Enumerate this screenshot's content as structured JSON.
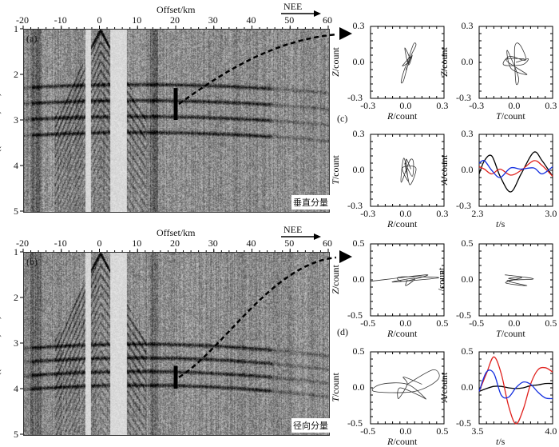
{
  "chart_data": [
    {
      "type": "heatmap",
      "panel": "(a)",
      "title": "Offset/km",
      "direction_label": "NEE",
      "component_label": "垂直分量",
      "ylabel": "((T-Offset)/6.0)/s",
      "xlim": [
        -20,
        60
      ],
      "ylim": [
        1,
        5
      ],
      "xticks": [
        -20,
        -10,
        0,
        10,
        20,
        30,
        40,
        50,
        60
      ],
      "yticks": [
        1,
        2,
        3,
        4,
        5
      ],
      "marker_offset_km": 20,
      "marker_time_s": [
        2.3,
        3.0
      ]
    },
    {
      "type": "heatmap",
      "panel": "(b)",
      "title": "Offset/km",
      "direction_label": "NEE",
      "component_label": "径向分量",
      "ylabel": "((T-Offset)/6.0)/s",
      "xlim": [
        -20,
        60
      ],
      "ylim": [
        1,
        5
      ],
      "xticks": [
        -20,
        -10,
        0,
        10,
        20,
        30,
        40,
        50,
        60
      ],
      "yticks": [
        1,
        2,
        3,
        4,
        5
      ],
      "marker_offset_km": 20,
      "marker_time_s": [
        3.5,
        4.0
      ]
    },
    {
      "type": "line",
      "group": "(c)",
      "plots": [
        {
          "xlabel": "R/count",
          "ylabel": "Z/count",
          "xlim": [
            -0.3,
            0.3
          ],
          "ylim": [
            -0.3,
            0.3
          ],
          "xticks": [
            "-0.3",
            "0.0",
            "0.3"
          ],
          "yticks": [
            "0.3",
            "0.0",
            "-0.3"
          ],
          "points": [
            [
              0,
              0
            ],
            [
              0.05,
              0.15
            ],
            [
              0.07,
              0.14
            ],
            [
              0.02,
              0.03
            ],
            [
              -0.03,
              -0.15
            ],
            [
              -0.05,
              -0.16
            ],
            [
              -0.02,
              -0.05
            ],
            [
              0.03,
              0.05
            ],
            [
              -0.04,
              -0.03
            ],
            [
              0.02,
              0.02
            ],
            [
              -0.02,
              0.12
            ],
            [
              0.01,
              -0.02
            ],
            [
              0.04,
              0.06
            ],
            [
              -0.01,
              -0.06
            ],
            [
              0.02,
              0.01
            ]
          ]
        },
        {
          "xlabel": "T/count",
          "ylabel": "Z/count",
          "xlim": [
            -0.3,
            0.3
          ],
          "ylim": [
            -0.3,
            0.3
          ],
          "xticks": [
            "-0.3",
            "0.0",
            "0.3"
          ],
          "yticks": [
            "0.3",
            "0.0",
            "-0.3"
          ],
          "points": [
            [
              0,
              0
            ],
            [
              0.1,
              0.03
            ],
            [
              0.05,
              -0.02
            ],
            [
              -0.1,
              -0.02
            ],
            [
              -0.05,
              0.05
            ],
            [
              0.08,
              0.02
            ],
            [
              0.03,
              0.15
            ],
            [
              -0.01,
              0.12
            ],
            [
              0,
              -0.17
            ],
            [
              0.02,
              -0.12
            ],
            [
              -0.07,
              0.1
            ],
            [
              -0.04,
              -0.05
            ],
            [
              0.09,
              -0.1
            ],
            [
              -0.08,
              0.02
            ],
            [
              0.07,
              0.03
            ]
          ]
        },
        {
          "xlabel": "R/count",
          "ylabel": "T/count",
          "xlim": [
            -0.3,
            0.3
          ],
          "ylim": [
            -0.3,
            0.3
          ],
          "xticks": [
            "-0.3",
            "0.0",
            "0.3"
          ],
          "yticks": [
            "0.3",
            "0.0",
            "-0.3"
          ],
          "points": [
            [
              0,
              0
            ],
            [
              -0.03,
              0.1
            ],
            [
              -0.05,
              -0.1
            ],
            [
              0.02,
              0.08
            ],
            [
              0.05,
              0.07
            ],
            [
              0.04,
              -0.05
            ],
            [
              -0.02,
              0.06
            ],
            [
              0.01,
              -0.09
            ],
            [
              -0.04,
              0.02
            ],
            [
              0.07,
              0.02
            ],
            [
              0.02,
              -0.12
            ],
            [
              -0.01,
              0.09
            ],
            [
              0.03,
              0.01
            ]
          ]
        },
        {
          "xlabel": "t/s",
          "ylabel": "A/count",
          "xlim": [
            2.3,
            3.0
          ],
          "ylim": [
            -0.3,
            0.3
          ],
          "xticks": [
            "2.3",
            "3.0"
          ],
          "yticks": [
            "0.3",
            "0.0",
            "-0.3"
          ],
          "t": [
            2.3,
            2.35,
            2.42,
            2.5,
            2.6,
            2.7,
            2.82,
            2.9,
            3.0
          ],
          "series": [
            {
              "color": "#000000",
              "values": [
                -0.03,
                0.08,
                0.12,
                -0.05,
                -0.18,
                -0.03,
                0.15,
                0.08,
                -0.05
              ]
            },
            {
              "color": "#e0201c",
              "values": [
                0.03,
                0.01,
                -0.03,
                0.01,
                -0.04,
                0.0,
                0.08,
                0.04,
                -0.05
              ]
            },
            {
              "color": "#1530e0",
              "values": [
                0.06,
                0.08,
                0.0,
                -0.06,
                0.02,
                0.01,
                0.02,
                -0.03,
                0.03
              ]
            }
          ]
        }
      ]
    },
    {
      "type": "line",
      "group": "(d)",
      "plots": [
        {
          "xlabel": "R/count",
          "ylabel": "Z/count",
          "xlim": [
            -0.5,
            0.5
          ],
          "ylim": [
            -0.5,
            0.5
          ],
          "xticks": [
            "-0.5",
            "0.0",
            "0.5"
          ],
          "yticks": [
            "0.5",
            "0.0",
            "-0.5"
          ],
          "points": [
            [
              -0.5,
              -0.02
            ],
            [
              0.27,
              0.07
            ],
            [
              -0.05,
              -0.02
            ],
            [
              -0.1,
              0.04
            ],
            [
              0.43,
              0.03
            ],
            [
              -0.2,
              -0.03
            ],
            [
              0.1,
              0.02
            ],
            [
              -0.02,
              -0.08
            ],
            [
              0,
              0
            ]
          ]
        },
        {
          "xlabel": "T/count",
          "ylabel": "/count",
          "xlim": [
            -0.5,
            0.5
          ],
          "ylim": [
            -0.5,
            0.5
          ],
          "xticks": [
            "-0.5",
            "0.0",
            "0.5"
          ],
          "yticks": [
            "0.5",
            "0.0",
            "-0.5"
          ],
          "points": [
            [
              -0.15,
              0.07
            ],
            [
              0.1,
              0.04
            ],
            [
              0.23,
              0.01
            ],
            [
              -0.12,
              -0.01
            ],
            [
              0.15,
              -0.08
            ],
            [
              -0.14,
              -0.04
            ],
            [
              0.08,
              0.03
            ],
            [
              -0.1,
              0.02
            ],
            [
              0.05,
              0
            ]
          ]
        },
        {
          "xlabel": "R/count",
          "ylabel": "T/count",
          "xlim": [
            -0.5,
            0.5
          ],
          "ylim": [
            -0.5,
            0.5
          ],
          "xticks": [
            "-0.5",
            "0.0",
            "0.5"
          ],
          "yticks": [
            "0.5",
            "0.0",
            "-0.5"
          ],
          "points": [
            [
              0,
              0.05
            ],
            [
              0.35,
              0.25
            ],
            [
              0.42,
              0.12
            ],
            [
              0.1,
              -0.05
            ],
            [
              -0.45,
              -0.05
            ],
            [
              -0.35,
              0.05
            ],
            [
              0,
              0.05
            ],
            [
              0.25,
              -0.15
            ],
            [
              0.15,
              -0.1
            ],
            [
              -0.1,
              0.0
            ],
            [
              -0.12,
              -0.15
            ],
            [
              0,
              0.05
            ],
            [
              -0.05,
              0.15
            ],
            [
              0.2,
              0.05
            ]
          ]
        },
        {
          "xlabel": "t/s",
          "ylabel": "A/count",
          "xlim": [
            3.5,
            4.0
          ],
          "ylim": [
            -0.5,
            0.5
          ],
          "xticks": [
            "3.5",
            "4.0"
          ],
          "yticks": [
            "0.5",
            "0.0",
            "-0.5"
          ],
          "t": [
            3.5,
            3.55,
            3.6,
            3.65,
            3.7,
            3.75,
            3.8,
            3.85,
            3.9,
            3.95,
            4.0
          ],
          "series": [
            {
              "color": "#000000",
              "values": [
                -0.05,
                -0.01,
                0.02,
                0.02,
                0.0,
                -0.01,
                0.0,
                0.03,
                0.04,
                0.06,
                0.06
              ]
            },
            {
              "color": "#e0201c",
              "values": [
                -0.05,
                0.2,
                0.43,
                0.2,
                -0.25,
                -0.5,
                -0.3,
                0.05,
                0.25,
                0.28,
                0.22
              ]
            },
            {
              "color": "#1530e0",
              "values": [
                -0.05,
                0.22,
                0.2,
                -0.1,
                -0.13,
                0.0,
                0.08,
                0.05,
                -0.06,
                -0.14,
                -0.15
              ]
            }
          ]
        }
      ]
    }
  ]
}
